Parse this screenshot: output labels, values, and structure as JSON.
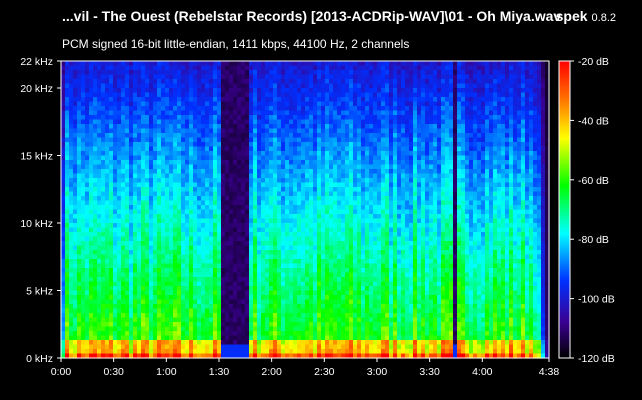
{
  "header": {
    "file_title": "...vil - The Ouest (Rebelstar Records) [2013-ACDRip-WAV]\\01 - Oh Miya.wav",
    "app_name": "spek",
    "app_version": "0.8.2",
    "format_info": "PCM signed 16-bit little-endian, 1411 kbps, 44100 Hz, 2 channels"
  },
  "colors": {
    "background": "#000000",
    "text": "#ffffff"
  },
  "chart_data": {
    "type": "heatmap",
    "title": "",
    "xlabel": "",
    "ylabel": "",
    "x_ticks": [
      "0:00",
      "0:30",
      "1:00",
      "1:30",
      "2:00",
      "2:30",
      "3:00",
      "3:30",
      "4:00",
      "4:38"
    ],
    "x_tick_seconds": [
      0,
      30,
      60,
      90,
      120,
      150,
      180,
      210,
      240,
      278
    ],
    "xlim_seconds": [
      0,
      278
    ],
    "y_ticks": [
      "0 kHz",
      "5 kHz",
      "10 kHz",
      "15 kHz",
      "20 kHz",
      "22 kHz"
    ],
    "y_tick_khz": [
      0,
      5,
      10,
      15,
      20,
      22
    ],
    "ylim_khz": [
      0,
      22
    ],
    "colorbar_ticks": [
      "-20 dB",
      "-40 dB",
      "-60 dB",
      "-80 dB",
      "-100 dB",
      "-120 dB"
    ],
    "colorbar_db": [
      -20,
      -40,
      -60,
      -80,
      -100,
      -120
    ],
    "colorbar_range_db": [
      -120,
      -20
    ],
    "colormap": [
      "#ff0000",
      "#ff8000",
      "#ffff00",
      "#00ff00",
      "#00ffff",
      "#0000ff",
      "#4000a0",
      "#000000"
    ],
    "silent_gaps_seconds": [
      [
        92,
        108
      ],
      [
        223,
        226
      ]
    ]
  }
}
